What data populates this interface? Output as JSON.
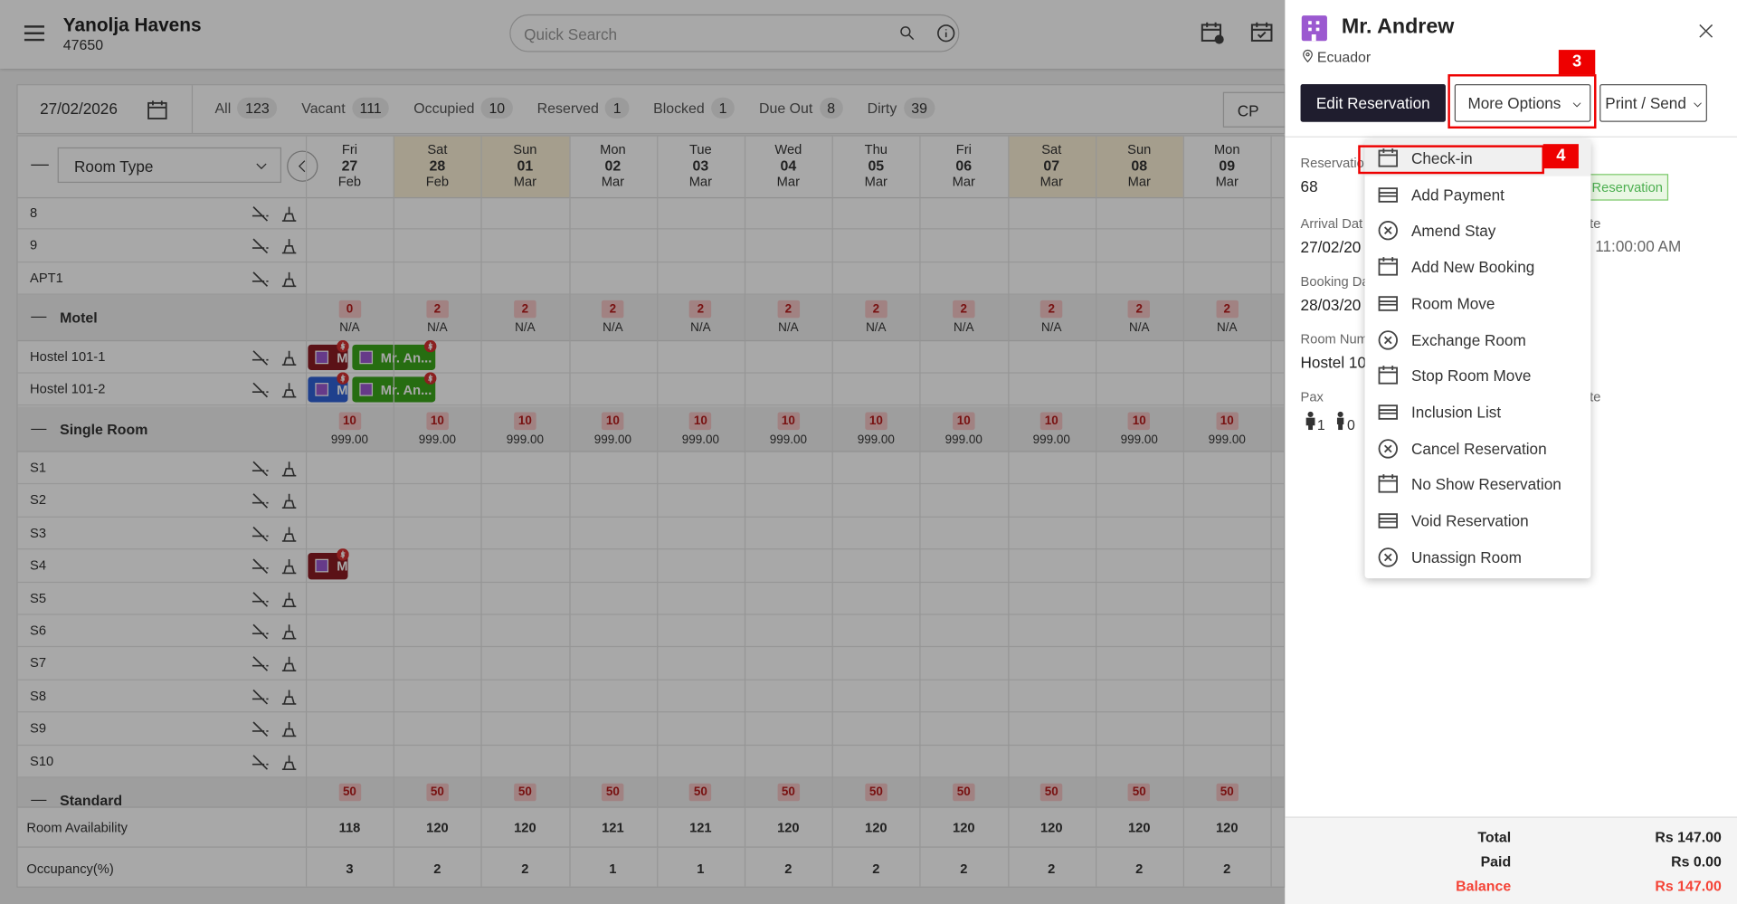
{
  "header": {
    "hotel_name": "Yanolja Havens",
    "hotel_code": "47650",
    "search_placeholder": "Quick Search"
  },
  "toolbar": {
    "date": "27/02/2026",
    "filters": [
      {
        "label": "All",
        "count": "123"
      },
      {
        "label": "Vacant",
        "count": "111"
      },
      {
        "label": "Occupied",
        "count": "10"
      },
      {
        "label": "Reserved",
        "count": "1"
      },
      {
        "label": "Blocked",
        "count": "1"
      },
      {
        "label": "Due Out",
        "count": "8"
      },
      {
        "label": "Dirty",
        "count": "39"
      }
    ],
    "rate_plan": "CP"
  },
  "grid": {
    "room_type_select": "Room Type",
    "days": [
      {
        "dow": "Fri",
        "day": "27",
        "month": "Feb",
        "weekend": false
      },
      {
        "dow": "Sat",
        "day": "28",
        "month": "Feb",
        "weekend": true
      },
      {
        "dow": "Sun",
        "day": "01",
        "month": "Mar",
        "weekend": true
      },
      {
        "dow": "Mon",
        "day": "02",
        "month": "Mar",
        "weekend": false
      },
      {
        "dow": "Tue",
        "day": "03",
        "month": "Mar",
        "weekend": false
      },
      {
        "dow": "Wed",
        "day": "04",
        "month": "Mar",
        "weekend": false
      },
      {
        "dow": "Thu",
        "day": "05",
        "month": "Mar",
        "weekend": false
      },
      {
        "dow": "Fri",
        "day": "06",
        "month": "Mar",
        "weekend": false
      },
      {
        "dow": "Sat",
        "day": "07",
        "month": "Mar",
        "weekend": true
      },
      {
        "dow": "Sun",
        "day": "08",
        "month": "Mar",
        "weekend": true
      },
      {
        "dow": "Mon",
        "day": "09",
        "month": "Mar",
        "weekend": false
      }
    ],
    "rows": [
      {
        "room": "8"
      },
      {
        "room": "9"
      },
      {
        "room": "APT1"
      },
      {
        "group": "Motel",
        "badges": [
          "0",
          "2",
          "2",
          "2",
          "2",
          "2",
          "2",
          "2",
          "2",
          "2",
          "2"
        ],
        "sub": [
          "N/A",
          "N/A",
          "N/A",
          "N/A",
          "N/A",
          "N/A",
          "N/A",
          "N/A",
          "N/A",
          "N/A",
          "N/A"
        ]
      },
      {
        "room": "Hostel 101-1",
        "bookings": [
          {
            "label": "M",
            "color": "#8b1c24",
            "col": -1
          },
          {
            "label": "Mr. An...",
            "color": "#3aa61a",
            "col": 0
          }
        ]
      },
      {
        "room": "Hostel 101-2",
        "bookings": [
          {
            "label": "M",
            "color": "#2f62d6",
            "col": -1
          },
          {
            "label": "Mr. An...",
            "color": "#3aa61a",
            "col": 0
          }
        ]
      },
      {
        "group": "Single Room",
        "badges": [
          "10",
          "10",
          "10",
          "10",
          "10",
          "10",
          "10",
          "10",
          "10",
          "10",
          "10"
        ],
        "sub": [
          "999.00",
          "999.00",
          "999.00",
          "999.00",
          "999.00",
          "999.00",
          "999.00",
          "999.00",
          "999.00",
          "999.00",
          "999.00"
        ]
      },
      {
        "room": "S1"
      },
      {
        "room": "S2"
      },
      {
        "room": "S3"
      },
      {
        "room": "S4",
        "bookings": [
          {
            "label": "M",
            "color": "#8b1c24",
            "col": -1
          }
        ]
      },
      {
        "room": "S5"
      },
      {
        "room": "S6"
      },
      {
        "room": "S7"
      },
      {
        "room": "S8"
      },
      {
        "room": "S9"
      },
      {
        "room": "S10"
      },
      {
        "group": "Standard",
        "badges": [
          "50",
          "50",
          "50",
          "50",
          "50",
          "50",
          "50",
          "50",
          "50",
          "50",
          "50"
        ]
      }
    ],
    "summary": [
      {
        "label": "Room Availability",
        "values": [
          "118",
          "120",
          "120",
          "121",
          "121",
          "120",
          "120",
          "120",
          "120",
          "120",
          "120"
        ]
      },
      {
        "label": "Occupancy(%)",
        "values": [
          "3",
          "2",
          "2",
          "1",
          "1",
          "2",
          "2",
          "2",
          "2",
          "2",
          "2"
        ]
      }
    ]
  },
  "panel": {
    "guest": "Mr. Andrew",
    "country": "Ecuador",
    "buttons": [
      "Edit Reservation",
      "More Options",
      "Print / Send"
    ],
    "details": [
      {
        "label": "Reservatio",
        "value": "68"
      },
      {
        "label": "Arrival Dat",
        "value": "27/02/20"
      },
      {
        "label": "Booking Da",
        "value": "28/03/20"
      },
      {
        "label": "Room Num",
        "value": "Hostel 10"
      },
      {
        "label": "Pax"
      }
    ],
    "status": "Reservation",
    "departure": {
      "label": "te",
      "value": "11:00:00 AM"
    },
    "pax_side_label": "te",
    "pax": [
      "1",
      "0"
    ],
    "menu": [
      "Check-in",
      "Add Payment",
      "Amend Stay",
      "Add New Booking",
      "Room Move",
      "Exchange Room",
      "Stop Room Move",
      "Inclusion List",
      "Cancel Reservation",
      "No Show Reservation",
      "Void Reservation",
      "Unassign Room"
    ],
    "annotations": [
      "3",
      "4"
    ],
    "totals": [
      {
        "label": "Total",
        "value": "Rs 147.00"
      },
      {
        "label": "Paid",
        "value": "Rs 0.00"
      },
      {
        "label": "Balance",
        "value": "Rs 147.00",
        "color": "#f44336"
      }
    ]
  }
}
